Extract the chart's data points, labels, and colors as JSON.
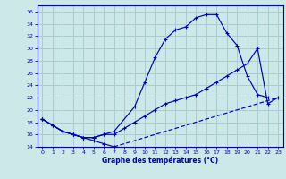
{
  "xlabel": "Graphe des températures (°C)",
  "xlim": [
    -0.5,
    23.5
  ],
  "ylim": [
    14,
    37
  ],
  "yticks": [
    14,
    16,
    18,
    20,
    22,
    24,
    26,
    28,
    30,
    32,
    34,
    36
  ],
  "xticks": [
    0,
    1,
    2,
    3,
    4,
    5,
    6,
    7,
    8,
    9,
    10,
    11,
    12,
    13,
    14,
    15,
    16,
    17,
    18,
    19,
    20,
    21,
    22,
    23
  ],
  "bg_color": "#cce8e8",
  "line_color": "#0000bb",
  "grid_color": "#aacccc",
  "curve_max_x": [
    0,
    1,
    2,
    3,
    4,
    5,
    6,
    7,
    9,
    10,
    11,
    12,
    13,
    14,
    15,
    16,
    17,
    18,
    19,
    20,
    21,
    22
  ],
  "curve_max_y": [
    18.5,
    17.5,
    16.5,
    16.0,
    15.5,
    15.5,
    16.0,
    16.5,
    20.5,
    24.5,
    28.5,
    31.5,
    33.0,
    33.5,
    35.0,
    35.5,
    35.5,
    32.5,
    30.5,
    25.5,
    22.5,
    22.0
  ],
  "curve_mean_x": [
    0,
    1,
    2,
    3,
    4,
    5,
    6,
    7,
    8,
    9,
    10,
    11,
    12,
    13,
    14,
    15,
    16,
    17,
    18,
    19,
    20,
    21,
    22,
    23
  ],
  "curve_mean_y": [
    18.5,
    17.5,
    16.5,
    16.0,
    15.5,
    15.5,
    16.0,
    16.0,
    17.0,
    18.0,
    19.0,
    20.0,
    21.0,
    21.5,
    22.0,
    22.5,
    23.5,
    24.5,
    25.5,
    26.5,
    27.5,
    30.0,
    21.0,
    22.0
  ],
  "curve_min_solid_x": [
    0,
    1,
    2,
    3,
    4,
    5,
    6,
    7
  ],
  "curve_min_solid_y": [
    18.5,
    17.5,
    16.5,
    16.0,
    15.5,
    15.0,
    14.5,
    14.0
  ],
  "curve_min_dash_x": [
    7,
    8,
    9,
    10,
    11,
    12,
    13,
    14,
    15,
    16,
    17,
    18,
    19,
    20,
    21,
    22,
    23
  ],
  "curve_min_dash_y": [
    14.0,
    14.5,
    15.0,
    15.5,
    16.0,
    16.5,
    17.0,
    17.5,
    18.0,
    18.5,
    19.0,
    19.5,
    20.0,
    20.5,
    21.0,
    21.5,
    22.0
  ]
}
